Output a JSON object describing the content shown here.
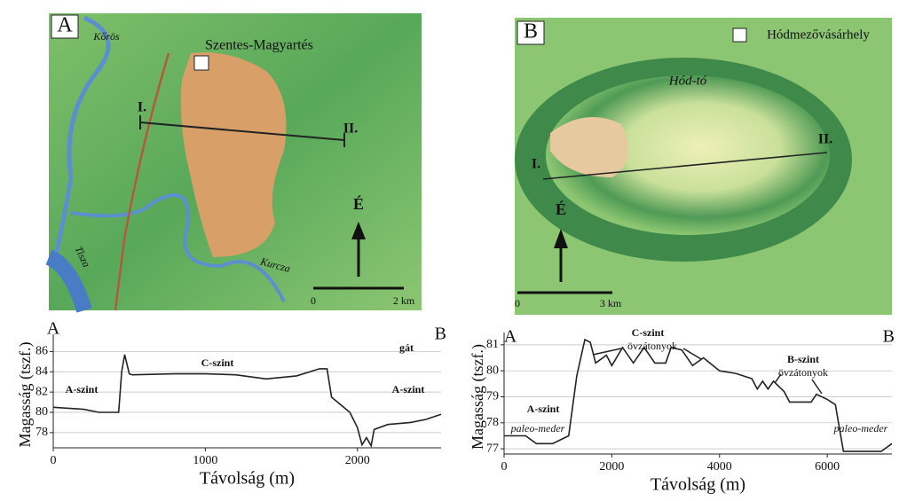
{
  "maps": [
    {
      "panel": "A",
      "places": [
        "Kőrös",
        "Szentes-Magyartés",
        "Tisza",
        "Kurcza"
      ],
      "section_start": "I.",
      "section_end": "II.",
      "north": "É",
      "scale": [
        "0",
        "2 km"
      ]
    },
    {
      "panel": "B",
      "places": [
        "Hódmezővásárhely",
        "Hód-tó"
      ],
      "section_start": "I.",
      "section_end": "II.",
      "north": "É",
      "scale": [
        "0",
        "3 km"
      ]
    }
  ],
  "chart_data": [
    {
      "type": "line",
      "panel_start": "A",
      "panel_end": "B",
      "y_label": "Magasság (tszf.)",
      "x_label": "Távolság (m)",
      "annotations": [
        "gát",
        "C-szint",
        "A-szint",
        "A-szint"
      ],
      "x": [
        0,
        200,
        300,
        430,
        450,
        470,
        500,
        520,
        800,
        1000,
        1200,
        1400,
        1600,
        1750,
        1800,
        1830,
        1950,
        2000,
        2030,
        2060,
        2090,
        2110,
        2200,
        2350,
        2450,
        2550
      ],
      "series": [
        {
          "color": "#222222",
          "values": [
            80.5,
            80.3,
            80,
            80,
            84,
            85.7,
            83.8,
            83.7,
            83.8,
            83.8,
            83.7,
            83.3,
            83.6,
            84.3,
            84.3,
            81.5,
            80,
            78.5,
            76.8,
            77.5,
            76.7,
            78.3,
            78.8,
            79,
            79.3,
            79.8
          ]
        }
      ],
      "xlim": [
        0,
        2550
      ],
      "ylim": [
        76.5,
        87
      ],
      "xticks": [
        0,
        1000,
        2000
      ],
      "yticks": [
        78,
        80,
        82,
        84,
        86
      ],
      "grid": true
    },
    {
      "type": "line",
      "panel_start": "A",
      "panel_end": "B",
      "y_label": "Magasság (tszf.)",
      "x_label": "Távolság (m)",
      "annotations": [
        "C-szint",
        "övzátonyok",
        "B-szint",
        "övzátonyok",
        "A-szint",
        "paleo-meder",
        "paleo-meder"
      ],
      "x": [
        0,
        400,
        600,
        900,
        1200,
        1350,
        1500,
        1600,
        1700,
        1900,
        2000,
        2200,
        2400,
        2600,
        2800,
        3000,
        3100,
        3300,
        3500,
        3700,
        4000,
        4300,
        4600,
        4700,
        4800,
        4900,
        5000,
        5200,
        5300,
        5700,
        5800,
        6000,
        6150,
        6300,
        7000,
        7200
      ],
      "series": [
        {
          "color": "#222222",
          "values": [
            77.5,
            77.5,
            77.2,
            77.2,
            77.5,
            79.8,
            81.2,
            81.1,
            80.3,
            80.6,
            80.2,
            80.9,
            80.3,
            80.9,
            80.3,
            80.3,
            80.9,
            80.8,
            80.2,
            80.5,
            80,
            79.9,
            79.7,
            79.3,
            79.6,
            79.3,
            79.6,
            79.2,
            78.8,
            78.8,
            79.1,
            78.9,
            78.7,
            76.9,
            76.9,
            77.2
          ]
        }
      ],
      "xlim": [
        0,
        7200
      ],
      "ylim": [
        76.8,
        81.2
      ],
      "xticks": [
        0,
        2000,
        4000,
        6000
      ],
      "yticks": [
        77,
        78,
        79,
        80,
        81
      ],
      "grid": true
    }
  ]
}
